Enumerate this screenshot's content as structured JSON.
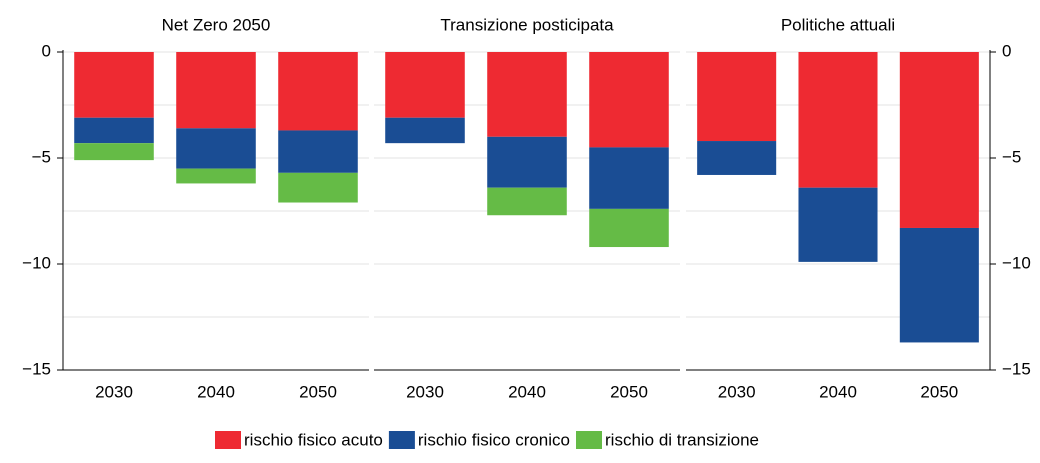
{
  "legend": [
    {
      "name": "rischio fisico acuto",
      "color": "#ee2a32"
    },
    {
      "name": "rischio fisico cronico",
      "color": "#1a4d94"
    },
    {
      "name": "rischio di transizione",
      "color": "#65bb46"
    }
  ],
  "chart_data": [
    {
      "type": "bar",
      "stacked": true,
      "title": "Net Zero 2050",
      "categories": [
        "2030",
        "2040",
        "2050"
      ],
      "series": [
        {
          "values": [
            -3.1,
            -3.6,
            -3.7
          ]
        },
        {
          "values": [
            -1.2,
            -1.9,
            -2.0
          ]
        },
        {
          "values": [
            -0.8,
            -0.7,
            -1.4
          ]
        }
      ],
      "ylim": [
        -15,
        0
      ],
      "yticks": [
        {
          "value": -15,
          "label": "−15"
        },
        {
          "value": -10,
          "label": "−10"
        },
        {
          "value": -5,
          "label": "−5"
        },
        0
      ],
      "minor_yticks": [
        -12.5,
        -7.5,
        -2.5
      ],
      "grid": true,
      "y_axis_position": "left"
    },
    {
      "type": "bar",
      "stacked": true,
      "title": "Transizione posticipata",
      "categories": [
        "2030",
        "2040",
        "2050"
      ],
      "series": [
        {
          "values": [
            -3.1,
            -4.0,
            -4.5
          ]
        },
        {
          "values": [
            -1.2,
            -2.4,
            -2.9
          ]
        },
        {
          "values": [
            0,
            -1.3,
            -1.8
          ]
        }
      ],
      "ylim": [
        -15,
        0
      ],
      "yticks": [
        -15,
        -10,
        -5,
        0
      ],
      "minor_yticks": [
        -12.5,
        -7.5,
        -2.5
      ],
      "grid": true
    },
    {
      "type": "bar",
      "stacked": true,
      "title": "Politiche attuali",
      "categories": [
        "2030",
        "2040",
        "2050"
      ],
      "series": [
        {
          "values": [
            -4.2,
            -6.4,
            -8.3
          ]
        },
        {
          "values": [
            -1.6,
            -3.5,
            -5.4
          ]
        },
        {
          "values": [
            0,
            0,
            0
          ]
        }
      ],
      "ylim": [
        -15,
        0
      ],
      "yticks": [
        {
          "value": -15,
          "label": "−15"
        },
        {
          "value": -10,
          "label": "−10"
        },
        {
          "value": -5,
          "label": "−5"
        },
        0
      ],
      "minor_yticks": [
        -12.5,
        -7.5,
        -2.5
      ],
      "grid": true,
      "y_axis_position": "right"
    }
  ]
}
